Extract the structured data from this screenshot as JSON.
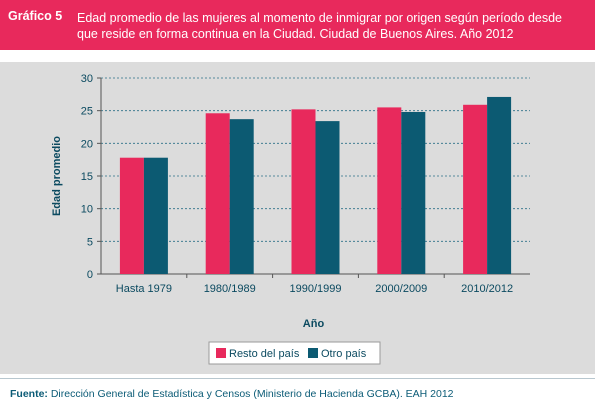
{
  "header": {
    "label": "Gráfico  5",
    "title": "Edad promedio de las mujeres al momento de inmigrar por origen según período desde que reside en forma continua en la Ciudad. Ciudad de Buenos  Aires. Año 2012"
  },
  "footer": {
    "source_label": "Fuente:",
    "source_text": "Dirección General de Estadística y Censos (Ministerio de Hacienda GCBA). EAH 2012"
  },
  "colors": {
    "accent": "#e8295c",
    "series_1": "#e8295c",
    "series_2": "#0c5a72",
    "axis_text": "#0b4a60",
    "panel": "#dcdcdc"
  },
  "chart_data": {
    "type": "bar",
    "title": "",
    "xlabel": "Año",
    "ylabel": "Edad promedio",
    "categories": [
      "Hasta 1979",
      "1980/1989",
      "1990/1999",
      "2000/2009",
      "2010/2012"
    ],
    "series": [
      {
        "name": "Resto del país",
        "values": [
          17.8,
          24.6,
          25.2,
          25.5,
          25.9
        ]
      },
      {
        "name": "Otro país",
        "values": [
          17.8,
          23.7,
          23.4,
          24.8,
          27.1
        ]
      }
    ],
    "ylim": [
      0,
      30
    ],
    "yticks": [
      "0",
      "5",
      "10",
      "15",
      "20",
      "25",
      "30"
    ],
    "grid": true,
    "legend_position": "bottom-center"
  }
}
